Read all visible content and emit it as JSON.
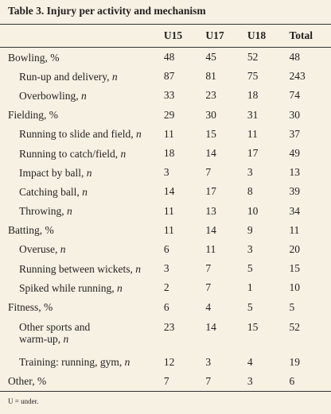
{
  "table": {
    "title": "Table 3. Injury per activity and mechanism",
    "columns": [
      "U15",
      "U17",
      "U18",
      "Total"
    ],
    "groups": [
      {
        "label": "Bowling, %",
        "values": [
          48,
          45,
          52,
          48
        ],
        "items": [
          {
            "label": "Run-up and delivery,",
            "unit": "n",
            "values": [
              87,
              81,
              75,
              243
            ]
          },
          {
            "label": "Overbowling,",
            "unit": "n",
            "values": [
              33,
              23,
              18,
              74
            ]
          }
        ]
      },
      {
        "label": "Fielding, %",
        "values": [
          29,
          30,
          31,
          30
        ],
        "items": [
          {
            "label": "Running to slide and field,",
            "unit": "n",
            "values": [
              11,
              15,
              11,
              37
            ]
          },
          {
            "label": "Running to catch/field,",
            "unit": "n",
            "values": [
              18,
              14,
              17,
              49
            ]
          },
          {
            "label": "Impact by ball,",
            "unit": "n",
            "values": [
              3,
              7,
              3,
              13
            ]
          },
          {
            "label": "Catching ball,",
            "unit": "n",
            "values": [
              14,
              17,
              8,
              39
            ]
          },
          {
            "label": "Throwing,",
            "unit": "n",
            "values": [
              11,
              13,
              10,
              34
            ]
          }
        ]
      },
      {
        "label": "Batting, %",
        "values": [
          11,
          14,
          9,
          11
        ],
        "items": [
          {
            "label": "Overuse,",
            "unit": "n",
            "values": [
              6,
              11,
              3,
              20
            ]
          },
          {
            "label": "Running between wickets,",
            "unit": "n",
            "values": [
              3,
              7,
              5,
              15
            ]
          },
          {
            "label": "Spiked while running,",
            "unit": "n",
            "values": [
              2,
              7,
              1,
              10
            ]
          }
        ]
      },
      {
        "label": "Fitness, %",
        "values": [
          6,
          4,
          5,
          5
        ],
        "items": [
          {
            "label": "Other sports and\nwarm-up,",
            "unit": "n",
            "values": [
              23,
              14,
              15,
              52
            ]
          },
          {
            "label": "Training: running, gym,",
            "unit": "n",
            "values": [
              12,
              3,
              4,
              19
            ]
          }
        ]
      },
      {
        "label": "Other, %",
        "values": [
          7,
          7,
          3,
          6
        ],
        "items": []
      }
    ],
    "footnote": "U = under."
  }
}
